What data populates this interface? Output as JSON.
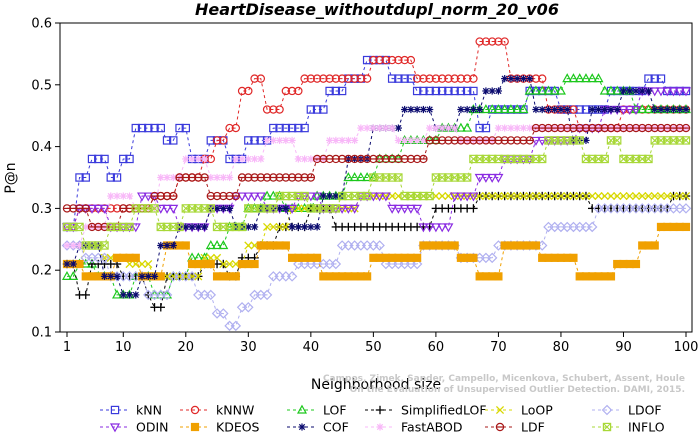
{
  "chart_data": {
    "type": "line",
    "title": "HeartDisease_withoutdupl_norm_20_v06",
    "xlabel": "Neighborhood size",
    "ylabel": "P@n",
    "xlim": [
      1,
      100
    ],
    "ylim": [
      0.1,
      0.6
    ],
    "x_ticks": [
      1,
      10,
      20,
      30,
      40,
      50,
      60,
      70,
      80,
      90,
      100
    ],
    "y_ticks": [
      0.1,
      0.2,
      0.3,
      0.4,
      0.5,
      0.6
    ],
    "credit": [
      "Campos, Zimek, Sander, Campello, Micenkova, Schubert, Assent, Houle",
      "On the Evaluation of Unsupervised Outlier Detection. DAMI, 2015."
    ],
    "legend_position": "bottom",
    "series": [
      {
        "name": "kNN",
        "color": "#3a3adc",
        "marker": "square",
        "points": [
          [
            1,
            0.27
          ],
          [
            3,
            0.35
          ],
          [
            5,
            0.38
          ],
          [
            8,
            0.35
          ],
          [
            10,
            0.38
          ],
          [
            12,
            0.43
          ],
          [
            17,
            0.41
          ],
          [
            19,
            0.43
          ],
          [
            21,
            0.38
          ],
          [
            24,
            0.41
          ],
          [
            27,
            0.38
          ],
          [
            30,
            0.41
          ],
          [
            34,
            0.43
          ],
          [
            40,
            0.46
          ],
          [
            43,
            0.49
          ],
          [
            46,
            0.51
          ],
          [
            49,
            0.54
          ],
          [
            53,
            0.51
          ],
          [
            57,
            0.49
          ],
          [
            67,
            0.43
          ],
          [
            69,
            0.46
          ],
          [
            75,
            0.49
          ],
          [
            80,
            0.46
          ],
          [
            88,
            0.49
          ],
          [
            94,
            0.51
          ],
          [
            97,
            0.49
          ],
          [
            100,
            0.49
          ]
        ]
      },
      {
        "name": "kNNW",
        "color": "#e02828",
        "marker": "circle",
        "points": [
          [
            1,
            0.27
          ],
          [
            3,
            0.3
          ],
          [
            10,
            0.3
          ],
          [
            15,
            0.32
          ],
          [
            19,
            0.35
          ],
          [
            23,
            0.38
          ],
          [
            25,
            0.41
          ],
          [
            27,
            0.43
          ],
          [
            29,
            0.49
          ],
          [
            31,
            0.51
          ],
          [
            33,
            0.46
          ],
          [
            36,
            0.49
          ],
          [
            39,
            0.51
          ],
          [
            50,
            0.54
          ],
          [
            57,
            0.51
          ],
          [
            65,
            0.51
          ],
          [
            67,
            0.57
          ],
          [
            72,
            0.51
          ],
          [
            78,
            0.46
          ],
          [
            83,
            0.43
          ],
          [
            90,
            0.46
          ],
          [
            95,
            0.46
          ],
          [
            100,
            0.46
          ]
        ]
      },
      {
        "name": "LOF",
        "color": "#1cc81c",
        "marker": "triangle-up",
        "points": [
          [
            1,
            0.19
          ],
          [
            3,
            0.21
          ],
          [
            6,
            0.19
          ],
          [
            9,
            0.16
          ],
          [
            12,
            0.19
          ],
          [
            15,
            0.16
          ],
          [
            18,
            0.19
          ],
          [
            21,
            0.22
          ],
          [
            24,
            0.24
          ],
          [
            27,
            0.27
          ],
          [
            30,
            0.3
          ],
          [
            33,
            0.32
          ],
          [
            36,
            0.3
          ],
          [
            41,
            0.32
          ],
          [
            46,
            0.35
          ],
          [
            51,
            0.38
          ],
          [
            55,
            0.41
          ],
          [
            61,
            0.43
          ],
          [
            66,
            0.46
          ],
          [
            75,
            0.49
          ],
          [
            81,
            0.51
          ],
          [
            87,
            0.49
          ],
          [
            92,
            0.46
          ],
          [
            100,
            0.46
          ]
        ]
      },
      {
        "name": "SimplifiedLOF",
        "color": "#000000",
        "marker": "plus",
        "points": [
          [
            1,
            0.21
          ],
          [
            3,
            0.16
          ],
          [
            5,
            0.21
          ],
          [
            10,
            0.19
          ],
          [
            14,
            0.16
          ],
          [
            15,
            0.14
          ],
          [
            17,
            0.19
          ],
          [
            23,
            0.21
          ],
          [
            27,
            0.19
          ],
          [
            29,
            0.22
          ],
          [
            32,
            0.24
          ],
          [
            35,
            0.27
          ],
          [
            40,
            0.3
          ],
          [
            44,
            0.27
          ],
          [
            54,
            0.27
          ],
          [
            58,
            0.27
          ],
          [
            60,
            0.3
          ],
          [
            67,
            0.32
          ],
          [
            85,
            0.3
          ],
          [
            98,
            0.32
          ],
          [
            100,
            0.32
          ]
        ]
      },
      {
        "name": "LoOP",
        "color": "#d8d800",
        "marker": "cross",
        "points": [
          [
            1,
            0.21
          ],
          [
            4,
            0.24
          ],
          [
            7,
            0.22
          ],
          [
            11,
            0.21
          ],
          [
            15,
            0.19
          ],
          [
            19,
            0.19
          ],
          [
            23,
            0.22
          ],
          [
            26,
            0.21
          ],
          [
            30,
            0.24
          ],
          [
            33,
            0.27
          ],
          [
            37,
            0.3
          ],
          [
            42,
            0.3
          ],
          [
            48,
            0.32
          ],
          [
            58,
            0.32
          ],
          [
            72,
            0.32
          ],
          [
            100,
            0.32
          ]
        ]
      },
      {
        "name": "LDOF",
        "color": "#b0b0f0",
        "marker": "diamond",
        "points": [
          [
            1,
            0.24
          ],
          [
            4,
            0.22
          ],
          [
            8,
            0.19
          ],
          [
            14,
            0.16
          ],
          [
            18,
            0.19
          ],
          [
            22,
            0.16
          ],
          [
            25,
            0.13
          ],
          [
            27,
            0.11
          ],
          [
            29,
            0.14
          ],
          [
            31,
            0.16
          ],
          [
            34,
            0.19
          ],
          [
            38,
            0.21
          ],
          [
            45,
            0.24
          ],
          [
            52,
            0.21
          ],
          [
            58,
            0.24
          ],
          [
            64,
            0.22
          ],
          [
            70,
            0.24
          ],
          [
            78,
            0.27
          ],
          [
            86,
            0.3
          ],
          [
            94,
            0.3
          ],
          [
            100,
            0.3
          ]
        ]
      },
      {
        "name": "ODIN",
        "color": "#8a2be2",
        "marker": "triangle-down",
        "points": [
          [
            1,
            0.27
          ],
          [
            3,
            0.3
          ],
          [
            8,
            0.27
          ],
          [
            13,
            0.32
          ],
          [
            16,
            0.3
          ],
          [
            19,
            0.27
          ],
          [
            24,
            0.3
          ],
          [
            28,
            0.32
          ],
          [
            33,
            0.3
          ],
          [
            38,
            0.32
          ],
          [
            42,
            0.3
          ],
          [
            48,
            0.32
          ],
          [
            53,
            0.3
          ],
          [
            58,
            0.27
          ],
          [
            63,
            0.32
          ],
          [
            67,
            0.35
          ],
          [
            71,
            0.38
          ],
          [
            76,
            0.41
          ],
          [
            83,
            0.43
          ],
          [
            87,
            0.46
          ],
          [
            93,
            0.49
          ],
          [
            100,
            0.49
          ]
        ]
      },
      {
        "name": "KDEOS",
        "color": "#f0a000",
        "marker": "square-filled",
        "points": [
          [
            1,
            0.21
          ],
          [
            4,
            0.19
          ],
          [
            9,
            0.22
          ],
          [
            13,
            0.19
          ],
          [
            17,
            0.24
          ],
          [
            21,
            0.21
          ],
          [
            25,
            0.19
          ],
          [
            29,
            0.21
          ],
          [
            32,
            0.24
          ],
          [
            37,
            0.22
          ],
          [
            42,
            0.19
          ],
          [
            50,
            0.22
          ],
          [
            58,
            0.24
          ],
          [
            64,
            0.22
          ],
          [
            67,
            0.19
          ],
          [
            71,
            0.24
          ],
          [
            77,
            0.22
          ],
          [
            83,
            0.19
          ],
          [
            89,
            0.21
          ],
          [
            93,
            0.24
          ],
          [
            96,
            0.27
          ],
          [
            100,
            0.27
          ]
        ]
      },
      {
        "name": "COF",
        "color": "#0a0a6e",
        "marker": "star",
        "points": [
          [
            1,
            0.21
          ],
          [
            3,
            0.24
          ],
          [
            7,
            0.19
          ],
          [
            10,
            0.16
          ],
          [
            13,
            0.19
          ],
          [
            16,
            0.24
          ],
          [
            19,
            0.27
          ],
          [
            24,
            0.3
          ],
          [
            28,
            0.27
          ],
          [
            32,
            0.3
          ],
          [
            37,
            0.27
          ],
          [
            42,
            0.32
          ],
          [
            46,
            0.38
          ],
          [
            50,
            0.43
          ],
          [
            55,
            0.46
          ],
          [
            60,
            0.43
          ],
          [
            64,
            0.46
          ],
          [
            68,
            0.49
          ],
          [
            71,
            0.51
          ],
          [
            76,
            0.46
          ],
          [
            82,
            0.41
          ],
          [
            85,
            0.46
          ],
          [
            90,
            0.49
          ],
          [
            95,
            0.46
          ],
          [
            100,
            0.46
          ]
        ]
      },
      {
        "name": "FastABOD",
        "color": "#f8b8f8",
        "marker": "star",
        "points": [
          [
            1,
            0.24
          ],
          [
            4,
            0.27
          ],
          [
            8,
            0.32
          ],
          [
            12,
            0.3
          ],
          [
            16,
            0.35
          ],
          [
            20,
            0.38
          ],
          [
            24,
            0.35
          ],
          [
            28,
            0.38
          ],
          [
            33,
            0.41
          ],
          [
            38,
            0.38
          ],
          [
            43,
            0.41
          ],
          [
            48,
            0.43
          ],
          [
            54,
            0.41
          ],
          [
            59,
            0.43
          ],
          [
            64,
            0.41
          ],
          [
            70,
            0.43
          ],
          [
            78,
            0.43
          ],
          [
            86,
            0.43
          ],
          [
            100,
            0.43
          ]
        ]
      },
      {
        "name": "LDF",
        "color": "#a81818",
        "marker": "circle-filled",
        "points": [
          [
            1,
            0.3
          ],
          [
            5,
            0.27
          ],
          [
            10,
            0.3
          ],
          [
            15,
            0.32
          ],
          [
            19,
            0.35
          ],
          [
            24,
            0.32
          ],
          [
            29,
            0.35
          ],
          [
            35,
            0.35
          ],
          [
            41,
            0.38
          ],
          [
            47,
            0.38
          ],
          [
            53,
            0.38
          ],
          [
            59,
            0.41
          ],
          [
            65,
            0.41
          ],
          [
            71,
            0.41
          ],
          [
            76,
            0.43
          ],
          [
            85,
            0.43
          ],
          [
            100,
            0.43
          ]
        ]
      },
      {
        "name": "INFLO",
        "color": "#a8d838",
        "marker": "hourglass",
        "points": [
          [
            1,
            0.27
          ],
          [
            4,
            0.24
          ],
          [
            8,
            0.27
          ],
          [
            12,
            0.3
          ],
          [
            16,
            0.27
          ],
          [
            20,
            0.3
          ],
          [
            25,
            0.27
          ],
          [
            30,
            0.3
          ],
          [
            35,
            0.32
          ],
          [
            40,
            0.3
          ],
          [
            45,
            0.32
          ],
          [
            50,
            0.35
          ],
          [
            55,
            0.32
          ],
          [
            60,
            0.35
          ],
          [
            66,
            0.38
          ],
          [
            72,
            0.38
          ],
          [
            78,
            0.41
          ],
          [
            84,
            0.38
          ],
          [
            88,
            0.41
          ],
          [
            90,
            0.38
          ],
          [
            95,
            0.41
          ],
          [
            100,
            0.41
          ]
        ]
      }
    ]
  }
}
